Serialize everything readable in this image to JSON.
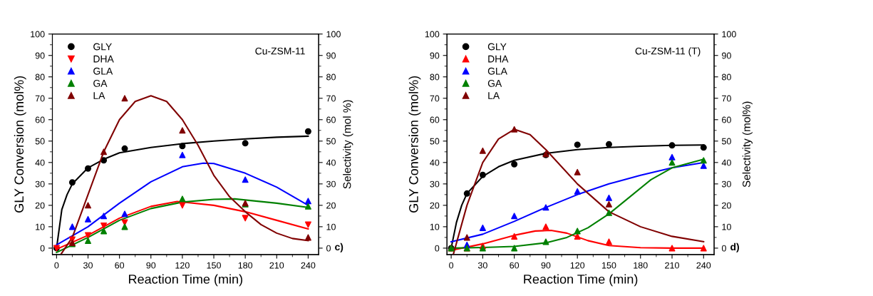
{
  "chart_data": [
    {
      "type": "scatter",
      "xlabel": "Reaction Time (min)",
      "ylabel": "GLY Conversion (mol%)",
      "y2label": "Selectivity (mol %)",
      "annotations": [
        "Cu-ZSM-11",
        "c)"
      ],
      "xlim": [
        -4,
        250
      ],
      "xticks": [
        0,
        30,
        60,
        90,
        120,
        150,
        180,
        210,
        240
      ],
      "ylim": [
        -3,
        100
      ],
      "yticks": [
        0,
        10,
        20,
        30,
        40,
        50,
        60,
        70,
        80,
        90,
        100
      ],
      "y2lim": [
        -3,
        100
      ],
      "y2ticks": [
        0,
        10,
        20,
        30,
        40,
        50,
        60,
        70,
        80,
        90,
        100
      ],
      "grid": false,
      "legend": "top left",
      "series": [
        {
          "name": "GLY",
          "marker": "circle",
          "color": "#000000",
          "axis": "y",
          "x": [
            0,
            15,
            30,
            45,
            65,
            120,
            180,
            240
          ],
          "values": [
            0,
            30.7,
            37.2,
            41,
            46.5,
            47.7,
            49,
            54.5
          ]
        },
        {
          "name": "DHA",
          "marker": "triangle_down",
          "color": "#ff0000",
          "axis": "y2",
          "x": [
            0,
            15,
            30,
            45,
            65,
            120,
            180,
            240
          ],
          "values": [
            0,
            4,
            6,
            10.5,
            12,
            20,
            14,
            11
          ]
        },
        {
          "name": "GLA",
          "marker": "triangle",
          "color": "#0000ff",
          "axis": "y2",
          "x": [
            15,
            30,
            45,
            65,
            120,
            180,
            240
          ],
          "values": [
            10,
            13.5,
            15,
            16,
            43.5,
            32,
            22
          ]
        },
        {
          "name": "GA",
          "marker": "triangle",
          "color": "#008000",
          "axis": "y2",
          "x": [
            15,
            30,
            45,
            65,
            120,
            180,
            240
          ],
          "values": [
            2,
            3.5,
            8,
            10,
            23,
            20.5,
            19.5
          ]
        },
        {
          "name": "LA",
          "marker": "triangle",
          "color": "#800000",
          "axis": "y2",
          "x": [
            15,
            30,
            45,
            65,
            120,
            180,
            240
          ],
          "values": [
            2.5,
            20,
            45,
            70,
            55,
            21,
            5
          ]
        },
        {
          "type": "line",
          "color": "#000000",
          "axis": "y",
          "x": [
            0,
            5,
            10,
            15,
            30,
            45,
            60,
            90,
            120,
            150,
            180,
            210,
            240
          ],
          "values": [
            0,
            18,
            25,
            30,
            37.5,
            41.5,
            44.5,
            47,
            48.8,
            50,
            51,
            51.8,
            52.3
          ]
        },
        {
          "type": "line",
          "color": "#ff0000",
          "axis": "y2",
          "x": [
            0,
            30,
            60,
            90,
            115,
            150,
            180,
            210,
            240
          ],
          "values": [
            -0.5,
            6,
            14,
            19.5,
            21.8,
            20,
            17,
            13,
            9
          ]
        },
        {
          "type": "line",
          "color": "#0000ff",
          "axis": "y2",
          "x": [
            0,
            30,
            60,
            90,
            120,
            140,
            150,
            180,
            210,
            240
          ],
          "values": [
            1.5,
            10,
            21,
            31,
            38,
            39.7,
            39.5,
            35,
            28.5,
            20
          ]
        },
        {
          "type": "line",
          "color": "#008000",
          "axis": "y2",
          "x": [
            0,
            30,
            60,
            90,
            120,
            150,
            170,
            210,
            240
          ],
          "values": [
            -2,
            5,
            13,
            18.5,
            21.5,
            22.8,
            23,
            21,
            19
          ]
        },
        {
          "type": "line",
          "color": "#800000",
          "axis": "y2",
          "x": [
            4,
            15,
            30,
            45,
            60,
            75,
            90,
            105,
            120,
            135,
            150,
            165,
            180,
            195,
            210,
            225,
            240
          ],
          "values": [
            -3,
            5,
            25,
            45,
            60,
            68.5,
            71.2,
            68.5,
            60,
            48,
            34,
            24,
            17,
            11,
            7,
            4.5,
            3.5
          ]
        }
      ]
    },
    {
      "type": "scatter",
      "xlabel": "Reaction Time (min)",
      "ylabel": "GLY Conversion (mol%)",
      "y2label": "Selectivity (mol%)",
      "annotations": [
        "Cu-ZSM-11 (T)",
        "d)"
      ],
      "xlim": [
        -4,
        250
      ],
      "xticks": [
        0,
        30,
        60,
        90,
        120,
        150,
        180,
        210,
        240
      ],
      "ylim": [
        -3,
        100
      ],
      "yticks": [
        0,
        10,
        20,
        30,
        40,
        50,
        60,
        70,
        80,
        90,
        100
      ],
      "y2lim": [
        -3,
        100
      ],
      "y2ticks": [
        0,
        10,
        20,
        30,
        40,
        50,
        60,
        70,
        80,
        90,
        100
      ],
      "grid": false,
      "legend": "top left",
      "series": [
        {
          "name": "GLY",
          "marker": "circle",
          "color": "#000000",
          "axis": "y",
          "x": [
            0,
            15,
            30,
            60,
            90,
            120,
            150,
            210,
            240
          ],
          "values": [
            0,
            25.5,
            34.2,
            39.2,
            43.5,
            48.3,
            48.5,
            48,
            47
          ]
        },
        {
          "name": "DHA",
          "marker": "triangle",
          "color": "#ff0000",
          "axis": "y2",
          "x": [
            0,
            15,
            30,
            60,
            90,
            120,
            150,
            210,
            240
          ],
          "values": [
            0,
            0,
            1,
            5.5,
            10,
            5.5,
            3,
            0,
            0
          ]
        },
        {
          "name": "GLA",
          "marker": "triangle",
          "color": "#0000ff",
          "axis": "y2",
          "x": [
            15,
            30,
            60,
            90,
            120,
            150,
            210,
            240
          ],
          "values": [
            1.5,
            9.5,
            15,
            19,
            26.5,
            23.5,
            42.5,
            38.5
          ]
        },
        {
          "name": "GA",
          "marker": "triangle",
          "color": "#008000",
          "axis": "y2",
          "x": [
            0,
            15,
            30,
            60,
            90,
            120,
            150,
            210,
            240
          ],
          "values": [
            0,
            0,
            0,
            0,
            3,
            8,
            16.5,
            40,
            41
          ]
        },
        {
          "name": "LA",
          "marker": "triangle",
          "color": "#800000",
          "axis": "y2",
          "x": [
            15,
            30,
            60,
            90,
            120,
            150
          ],
          "values": [
            5,
            45.5,
            55.5,
            44,
            35.5,
            20.5
          ]
        },
        {
          "type": "line",
          "color": "#000000",
          "axis": "y",
          "x": [
            0,
            5,
            10,
            15,
            30,
            45,
            60,
            90,
            120,
            150,
            180,
            210,
            240
          ],
          "values": [
            0,
            12,
            20,
            25.5,
            33.5,
            38,
            41,
            44.3,
            46,
            47,
            47.6,
            48,
            48.2
          ]
        },
        {
          "type": "line",
          "color": "#ff0000",
          "axis": "y2",
          "x": [
            0,
            30,
            60,
            80,
            95,
            110,
            130,
            150,
            180,
            210,
            240
          ],
          "values": [
            -1,
            2,
            6,
            8,
            8.3,
            7,
            3.5,
            1.2,
            0.2,
            0,
            0
          ]
        },
        {
          "type": "line",
          "color": "#0000ff",
          "axis": "y2",
          "x": [
            0,
            30,
            60,
            90,
            120,
            150,
            180,
            210,
            240
          ],
          "values": [
            3,
            6.5,
            12.5,
            19,
            25,
            30,
            34,
            37.5,
            40
          ]
        },
        {
          "type": "line",
          "color": "#008000",
          "axis": "y2",
          "x": [
            0,
            30,
            60,
            90,
            110,
            130,
            150,
            170,
            190,
            210,
            240
          ],
          "values": [
            0,
            0.3,
            0.8,
            2.5,
            5,
            9.5,
            16,
            24,
            32,
            37.5,
            41.5
          ]
        },
        {
          "type": "line",
          "color": "#800000",
          "axis": "y2",
          "x": [
            2,
            15,
            30,
            45,
            60,
            75,
            90,
            120,
            150,
            180,
            210,
            240
          ],
          "values": [
            -3,
            20,
            40,
            51,
            55.5,
            53,
            46,
            30,
            17,
            10,
            5.5,
            3
          ]
        }
      ]
    }
  ]
}
